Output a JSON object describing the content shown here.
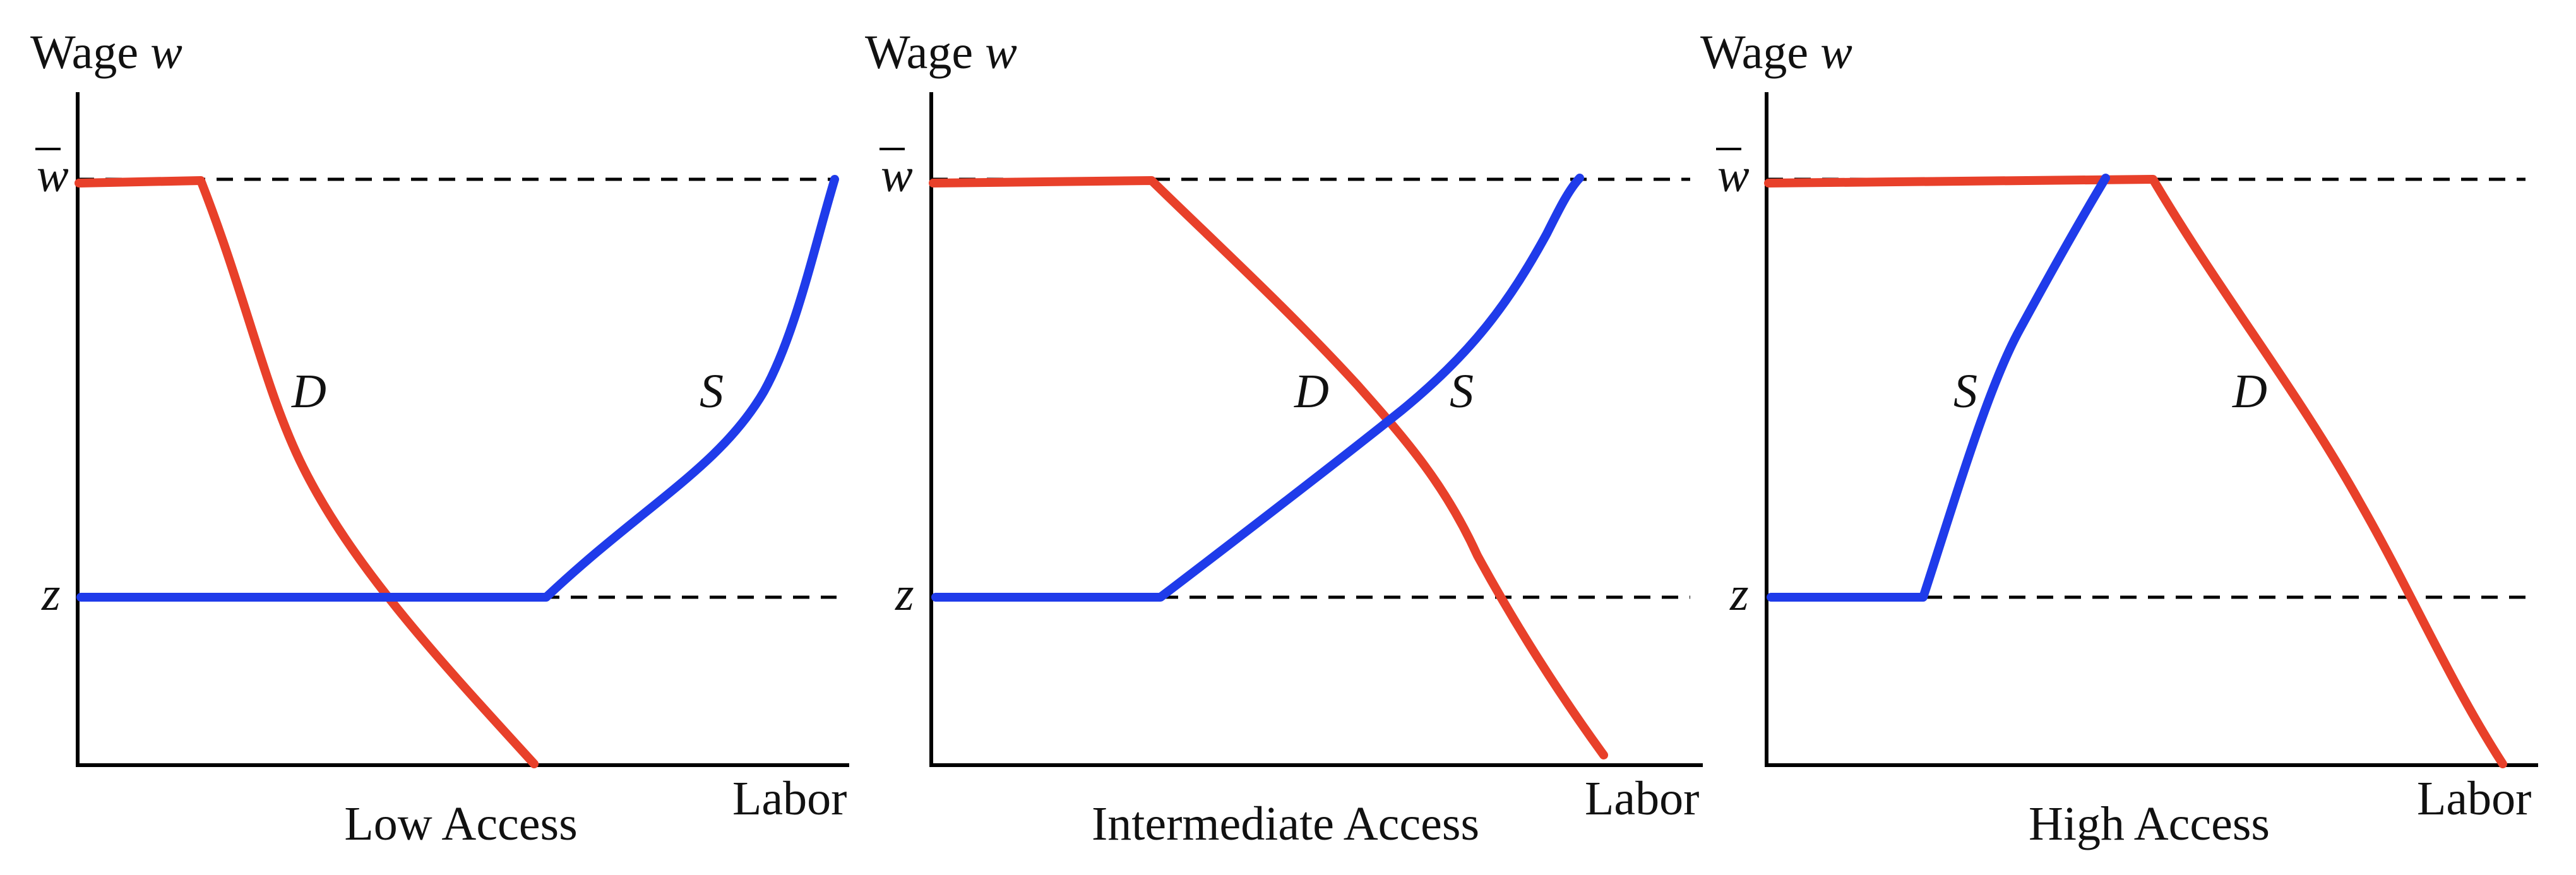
{
  "colors": {
    "demand": "#E8402A",
    "supply": "#1F3BEA",
    "axis": "#000000",
    "guide": "#000000"
  },
  "panels": [
    {
      "ylabel_text": "Wage ",
      "ylabel_var": "w",
      "wbar_label": "w",
      "z_label": "z",
      "xlabel": "Labor",
      "caption": "Low Access",
      "demand_label": "D",
      "supply_label": "S"
    },
    {
      "ylabel_text": "Wage ",
      "ylabel_var": "w",
      "wbar_label": "w",
      "z_label": "z",
      "xlabel": "Labor",
      "caption": "Intermediate Access",
      "demand_label": "D",
      "supply_label": "S"
    },
    {
      "ylabel_text": "Wage ",
      "ylabel_var": "w",
      "wbar_label": "w",
      "z_label": "z",
      "xlabel": "Labor",
      "caption": "High Access",
      "demand_label": "D",
      "supply_label": "S"
    }
  ]
}
